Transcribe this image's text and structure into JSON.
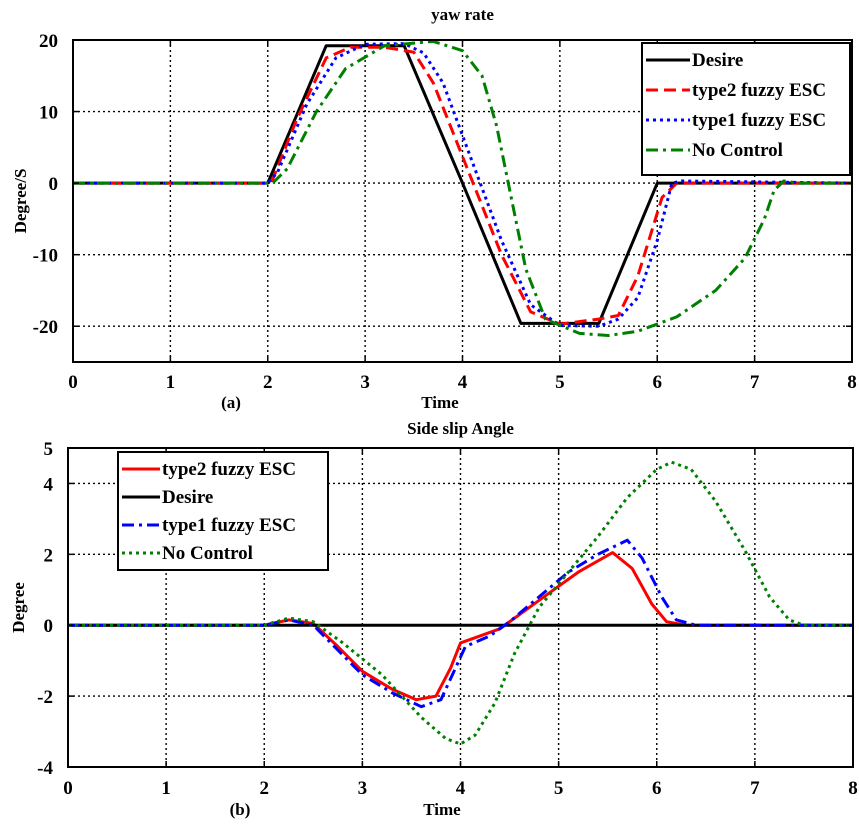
{
  "chart_data": [
    {
      "type": "line",
      "panel_label": "(a)",
      "title": "yaw rate",
      "xlabel": "Time",
      "ylabel": "Degree/S",
      "xlim": [
        0,
        8
      ],
      "ylim": [
        -25,
        20
      ],
      "xticks": [
        0,
        1,
        2,
        3,
        4,
        5,
        6,
        7,
        8
      ],
      "xtick_labels": [
        "0",
        "1",
        "2",
        "3",
        "4",
        "5",
        "6",
        "7",
        "8"
      ],
      "yticks": [
        20,
        10,
        0,
        -10,
        -20
      ],
      "ytick_labels": [
        "20",
        "10",
        "0",
        "-10",
        "-20"
      ],
      "grid": true,
      "legend_position": "top-right",
      "series": [
        {
          "name": "Desire",
          "color": "#000000",
          "dash": "solid",
          "points": [
            [
              0,
              0
            ],
            [
              2,
              0
            ],
            [
              2.6,
              19.2
            ],
            [
              3.4,
              19.2
            ],
            [
              4,
              0
            ],
            [
              4.6,
              -19.6
            ],
            [
              5.4,
              -19.6
            ],
            [
              6,
              0
            ],
            [
              8,
              0
            ]
          ]
        },
        {
          "name": "type2 fuzzy ESC",
          "color": "#ff0000",
          "dash": "dash",
          "points": [
            [
              0,
              0
            ],
            [
              2,
              0
            ],
            [
              2.05,
              0.5
            ],
            [
              2.3,
              9
            ],
            [
              2.6,
              17.5
            ],
            [
              2.85,
              19
            ],
            [
              3.2,
              19
            ],
            [
              3.5,
              18.3
            ],
            [
              3.7,
              14
            ],
            [
              4.05,
              2
            ],
            [
              4.4,
              -10
            ],
            [
              4.7,
              -18
            ],
            [
              5,
              -19.7
            ],
            [
              5.4,
              -19
            ],
            [
              5.6,
              -18.5
            ],
            [
              5.8,
              -13
            ],
            [
              6.05,
              -2
            ],
            [
              6.2,
              0
            ],
            [
              8,
              0
            ]
          ]
        },
        {
          "name": "type1 fuzzy ESC",
          "color": "#0000ff",
          "dash": "dot",
          "points": [
            [
              0,
              0
            ],
            [
              2,
              0
            ],
            [
              2.1,
              1.5
            ],
            [
              2.4,
              11
            ],
            [
              2.7,
              17.5
            ],
            [
              3,
              19.4
            ],
            [
              3.4,
              19.5
            ],
            [
              3.6,
              18.2
            ],
            [
              3.8,
              14
            ],
            [
              4.1,
              3
            ],
            [
              4.4,
              -8
            ],
            [
              4.7,
              -17
            ],
            [
              5,
              -19.9
            ],
            [
              5.4,
              -20
            ],
            [
              5.6,
              -19
            ],
            [
              5.8,
              -16
            ],
            [
              6,
              -8
            ],
            [
              6.15,
              0
            ],
            [
              6.25,
              0.3
            ],
            [
              8,
              0
            ]
          ]
        },
        {
          "name": "No Control",
          "color": "#008000",
          "dash": "dashdot",
          "points": [
            [
              0,
              0
            ],
            [
              2.05,
              0
            ],
            [
              2.2,
              2
            ],
            [
              2.5,
              10
            ],
            [
              2.8,
              16
            ],
            [
              3.2,
              19.2
            ],
            [
              3.7,
              19.8
            ],
            [
              4,
              18.5
            ],
            [
              4.2,
              15
            ],
            [
              4.35,
              8
            ],
            [
              4.5,
              -2
            ],
            [
              4.65,
              -12
            ],
            [
              4.85,
              -19
            ],
            [
              5.2,
              -21
            ],
            [
              5.5,
              -21.3
            ],
            [
              5.8,
              -20.7
            ],
            [
              6.2,
              -18.7
            ],
            [
              6.6,
              -15
            ],
            [
              6.9,
              -10.5
            ],
            [
              7.1,
              -5
            ],
            [
              7.2,
              -1
            ],
            [
              7.3,
              0.3
            ],
            [
              7.45,
              0
            ],
            [
              8,
              0
            ]
          ]
        }
      ]
    },
    {
      "type": "line",
      "panel_label": "(b)",
      "title": "Side slip Angle",
      "xlabel": "Time",
      "ylabel": "Degree",
      "xlim": [
        0,
        8
      ],
      "ylim": [
        -4,
        5
      ],
      "xticks": [
        0,
        1,
        2,
        3,
        4,
        5,
        6,
        7,
        8
      ],
      "xtick_labels": [
        "0",
        "1",
        "2",
        "3",
        "4",
        "5",
        "6",
        "7",
        "8"
      ],
      "yticks": [
        5,
        4,
        2,
        0,
        -2,
        -4
      ],
      "ytick_labels": [
        "5",
        "4",
        "2",
        "0",
        "-2",
        "-4"
      ],
      "grid": true,
      "legend_position": "top-left",
      "series": [
        {
          "name": "type2 fuzzy ESC",
          "color": "#ff0000",
          "dash": "solid",
          "points": [
            [
              0,
              0
            ],
            [
              2,
              0
            ],
            [
              2.25,
              0.15
            ],
            [
              2.5,
              0.05
            ],
            [
              2.75,
              -0.6
            ],
            [
              3,
              -1.3
            ],
            [
              3.3,
              -1.8
            ],
            [
              3.55,
              -2.1
            ],
            [
              3.75,
              -2
            ],
            [
              3.9,
              -1.2
            ],
            [
              4,
              -0.5
            ],
            [
              4.2,
              -0.3
            ],
            [
              4.4,
              -0.1
            ],
            [
              4.6,
              0.3
            ],
            [
              4.9,
              0.9
            ],
            [
              5.2,
              1.5
            ],
            [
              5.55,
              2.05
            ],
            [
              5.75,
              1.6
            ],
            [
              5.95,
              0.6
            ],
            [
              6.1,
              0.1
            ],
            [
              6.3,
              0
            ],
            [
              8,
              0
            ]
          ]
        },
        {
          "name": "Desire",
          "color": "#000000",
          "dash": "solid",
          "points": [
            [
              0,
              0
            ],
            [
              8,
              0
            ]
          ]
        },
        {
          "name": "type1 fuzzy ESC",
          "color": "#0000ff",
          "dash": "dashdot",
          "points": [
            [
              0,
              0
            ],
            [
              2,
              0
            ],
            [
              2.25,
              0.15
            ],
            [
              2.5,
              0
            ],
            [
              2.75,
              -0.7
            ],
            [
              3,
              -1.4
            ],
            [
              3.3,
              -1.9
            ],
            [
              3.6,
              -2.3
            ],
            [
              3.8,
              -2.1
            ],
            [
              3.95,
              -1.2
            ],
            [
              4.05,
              -0.6
            ],
            [
              4.3,
              -0.3
            ],
            [
              4.5,
              0.1
            ],
            [
              4.8,
              0.8
            ],
            [
              5.1,
              1.5
            ],
            [
              5.4,
              2
            ],
            [
              5.7,
              2.4
            ],
            [
              5.85,
              1.9
            ],
            [
              6.05,
              0.8
            ],
            [
              6.2,
              0.15
            ],
            [
              6.4,
              0
            ],
            [
              8,
              0
            ]
          ]
        },
        {
          "name": "No Control",
          "color": "#008000",
          "dash": "dot",
          "points": [
            [
              0,
              0
            ],
            [
              2,
              0
            ],
            [
              2.25,
              0.2
            ],
            [
              2.5,
              0.1
            ],
            [
              2.8,
              -0.5
            ],
            [
              3.2,
              -1.4
            ],
            [
              3.6,
              -2.6
            ],
            [
              3.85,
              -3.2
            ],
            [
              4,
              -3.35
            ],
            [
              4.15,
              -3.1
            ],
            [
              4.35,
              -2.2
            ],
            [
              4.55,
              -0.8
            ],
            [
              4.8,
              0.5
            ],
            [
              5.1,
              1.5
            ],
            [
              5.4,
              2.5
            ],
            [
              5.7,
              3.6
            ],
            [
              6,
              4.4
            ],
            [
              6.15,
              4.6
            ],
            [
              6.35,
              4.4
            ],
            [
              6.6,
              3.5
            ],
            [
              6.9,
              2.1
            ],
            [
              7.15,
              0.8
            ],
            [
              7.35,
              0.15
            ],
            [
              7.5,
              0
            ],
            [
              8,
              0
            ]
          ]
        }
      ]
    }
  ]
}
